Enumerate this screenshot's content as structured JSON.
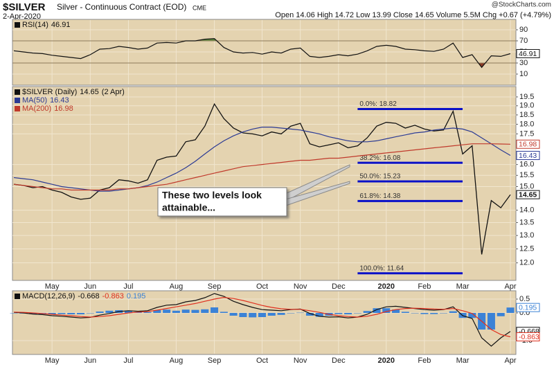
{
  "header": {
    "symbol": "$SILVER",
    "name": "Silver - Continuous Contract (EOD)",
    "exchange": "CME",
    "date": "2-Apr-2020",
    "quote": "Open 14.06  High 14.72  Low 13.99  Close 14.65  Volume 5.5M  Chg +0.67 (+4.79%)",
    "watermark": "@StockCharts.com"
  },
  "chart_data": [
    {
      "type": "line",
      "ylim": [
        -10,
        108.75
      ],
      "yticks": [
        10,
        30,
        50,
        70,
        90
      ],
      "grid": true,
      "bands": [
        70,
        30
      ],
      "overbought_color": "#5e8c3e",
      "oversold_color": "#8b3b26",
      "series": [
        {
          "name": "RSI(14)",
          "color": "#111111",
          "values": [
            52,
            50,
            48,
            47,
            44,
            42,
            40,
            38,
            45,
            55,
            56,
            60,
            58,
            55,
            57,
            66,
            67,
            66,
            70,
            70,
            73,
            74,
            58,
            50,
            48,
            49,
            46,
            50,
            48,
            55,
            57,
            42,
            40,
            42,
            45,
            43,
            46,
            52,
            60,
            62,
            60,
            55,
            54,
            52,
            51,
            55,
            66,
            40,
            45,
            22,
            43,
            42,
            46.91
          ]
        }
      ]
    },
    {
      "type": "line",
      "log_scale": true,
      "grid": true,
      "ylim": [
        11.4,
        20.1
      ],
      "yticks": [
        {
          "value": 12,
          "label": "12.0"
        },
        12.5,
        {
          "value": 13,
          "label": "13.0"
        },
        13.5,
        {
          "value": 14,
          "label": "14.0"
        },
        {
          "value": 15,
          "label": "15.0"
        },
        15.5,
        {
          "value": 16,
          "label": "16.0"
        },
        17.5,
        {
          "value": 18,
          "label": "18.0"
        },
        18.5,
        {
          "value": 19,
          "label": "19.0"
        },
        19.5
      ],
      "categories": [
        null,
        null,
        null,
        null,
        "May",
        null,
        null,
        null,
        "Jun",
        null,
        null,
        null,
        "Jul",
        null,
        null,
        null,
        null,
        "Aug",
        null,
        null,
        null,
        "Sep",
        null,
        null,
        null,
        null,
        "Oct",
        null,
        null,
        null,
        "Nov",
        null,
        null,
        null,
        "Dec",
        null,
        null,
        null,
        null,
        "2020",
        null,
        null,
        null,
        "Feb",
        null,
        null,
        null,
        "Mar",
        null,
        null,
        null,
        null,
        "Apr"
      ],
      "series": [
        {
          "name": "$SILVER (Daily)",
          "date_label": "(2 Apr)",
          "color": "#111111",
          "values": [
            15.1,
            15.05,
            14.95,
            15.0,
            14.85,
            14.75,
            14.55,
            14.45,
            14.5,
            14.85,
            14.95,
            15.3,
            15.25,
            15.15,
            15.3,
            16.2,
            16.35,
            16.4,
            17.1,
            17.2,
            17.9,
            19.1,
            18.3,
            17.8,
            17.55,
            17.5,
            17.4,
            17.6,
            17.5,
            17.9,
            18.05,
            17.0,
            16.85,
            16.95,
            17.05,
            16.8,
            16.9,
            17.3,
            17.9,
            18.1,
            18.05,
            17.8,
            17.95,
            17.75,
            17.65,
            17.7,
            18.7,
            16.5,
            16.9,
            12.3,
            14.4,
            14.1,
            14.65
          ]
        },
        {
          "name": "MA(50)",
          "color": "#2b3a94",
          "values": [
            15.4,
            15.35,
            15.3,
            15.2,
            15.1,
            15.0,
            14.95,
            14.9,
            14.85,
            14.8,
            14.8,
            14.85,
            14.9,
            14.95,
            15.05,
            15.2,
            15.4,
            15.6,
            15.85,
            16.15,
            16.5,
            16.85,
            17.15,
            17.4,
            17.6,
            17.75,
            17.85,
            17.85,
            17.8,
            17.75,
            17.7,
            17.6,
            17.5,
            17.35,
            17.25,
            17.15,
            17.1,
            17.1,
            17.15,
            17.25,
            17.35,
            17.45,
            17.55,
            17.6,
            17.7,
            17.75,
            17.8,
            17.75,
            17.6,
            17.3,
            17.0,
            16.7,
            16.43
          ]
        },
        {
          "name": "MA(200)",
          "color": "#c0392b",
          "values": [
            15.1,
            15.05,
            15.0,
            14.95,
            14.9,
            14.9,
            14.85,
            14.85,
            14.85,
            14.85,
            14.85,
            14.9,
            14.9,
            14.95,
            15.0,
            15.05,
            15.1,
            15.2,
            15.3,
            15.4,
            15.5,
            15.6,
            15.7,
            15.8,
            15.9,
            15.95,
            16.0,
            16.05,
            16.1,
            16.15,
            16.2,
            16.2,
            16.25,
            16.3,
            16.3,
            16.35,
            16.4,
            16.45,
            16.5,
            16.55,
            16.6,
            16.65,
            16.7,
            16.75,
            16.8,
            16.85,
            16.9,
            16.95,
            17.0,
            17.0,
            17.0,
            16.99,
            16.98
          ]
        }
      ],
      "levels": [
        {
          "label": "0.0%: 18.82",
          "value": 18.82
        },
        {
          "label": "38.2%: 16.08",
          "value": 16.08
        },
        {
          "label": "50.0%: 15.23",
          "value": 15.23
        },
        {
          "label": "61.8%: 14.38",
          "value": 14.38
        },
        {
          "label": "100.0%: 11.64",
          "value": 11.64
        }
      ],
      "level_color": "#0a10c8",
      "annotation": [
        "These two levels look",
        "attainable..."
      ]
    },
    {
      "type": "line",
      "grid": true,
      "ylim": [
        -1.5,
        0.8
      ],
      "yticks": [
        0.5,
        {
          "value": 0,
          "label": "0.0"
        },
        {
          "value": -1,
          "label": "-1.0"
        }
      ],
      "categories": [
        null,
        null,
        null,
        null,
        "May",
        null,
        null,
        null,
        "Jun",
        null,
        null,
        null,
        "Jul",
        null,
        null,
        null,
        null,
        "Aug",
        null,
        null,
        null,
        "Sep",
        null,
        null,
        null,
        null,
        "Oct",
        null,
        null,
        null,
        "Nov",
        null,
        null,
        null,
        "Dec",
        null,
        null,
        null,
        null,
        "2020",
        null,
        null,
        null,
        "Feb",
        null,
        null,
        null,
        "Mar",
        null,
        null,
        null,
        null,
        "Apr"
      ],
      "series": [
        {
          "name": "MACD(12,26,9)",
          "color": "#111111",
          "values": [
            0.02,
            0.0,
            -0.04,
            -0.06,
            -0.1,
            -0.12,
            -0.15,
            -0.18,
            -0.16,
            -0.08,
            -0.02,
            0.05,
            0.08,
            0.06,
            0.08,
            0.2,
            0.28,
            0.3,
            0.4,
            0.45,
            0.55,
            0.7,
            0.6,
            0.42,
            0.3,
            0.2,
            0.12,
            0.1,
            0.08,
            0.12,
            0.14,
            -0.02,
            -0.12,
            -0.15,
            -0.14,
            -0.18,
            -0.15,
            -0.05,
            0.12,
            0.22,
            0.24,
            0.2,
            0.16,
            0.12,
            0.1,
            0.12,
            0.22,
            -0.1,
            -0.2,
            -0.9,
            -1.2,
            -0.9,
            -0.668
          ]
        },
        {
          "color": "#e0301e",
          "values": [
            0.03,
            0.02,
            0.0,
            -0.02,
            -0.05,
            -0.08,
            -0.1,
            -0.13,
            -0.15,
            -0.13,
            -0.1,
            -0.05,
            0.0,
            0.03,
            0.05,
            0.1,
            0.16,
            0.22,
            0.28,
            0.34,
            0.42,
            0.5,
            0.56,
            0.52,
            0.45,
            0.36,
            0.27,
            0.2,
            0.15,
            0.13,
            0.13,
            0.08,
            0.02,
            -0.05,
            -0.1,
            -0.13,
            -0.15,
            -0.12,
            -0.05,
            0.05,
            0.12,
            0.16,
            0.17,
            0.16,
            0.14,
            0.13,
            0.16,
            0.08,
            -0.02,
            -0.3,
            -0.6,
            -0.78,
            -0.863
          ]
        },
        {
          "kind": "histogram",
          "color": "#3b82d6",
          "values": [
            -0.01,
            -0.02,
            -0.04,
            -0.04,
            -0.05,
            -0.04,
            -0.05,
            -0.05,
            -0.01,
            0.05,
            0.08,
            0.1,
            0.08,
            0.03,
            0.03,
            0.1,
            0.12,
            0.08,
            0.12,
            0.11,
            0.13,
            0.2,
            0.04,
            -0.1,
            -0.15,
            -0.16,
            -0.15,
            -0.1,
            -0.07,
            -0.01,
            0.01,
            -0.1,
            -0.14,
            -0.1,
            -0.04,
            -0.05,
            0.0,
            0.07,
            0.17,
            0.17,
            0.12,
            0.04,
            -0.01,
            -0.04,
            -0.04,
            -0.01,
            0.06,
            -0.18,
            -0.18,
            -0.6,
            -0.6,
            -0.12,
            0.195
          ]
        }
      ]
    }
  ]
}
